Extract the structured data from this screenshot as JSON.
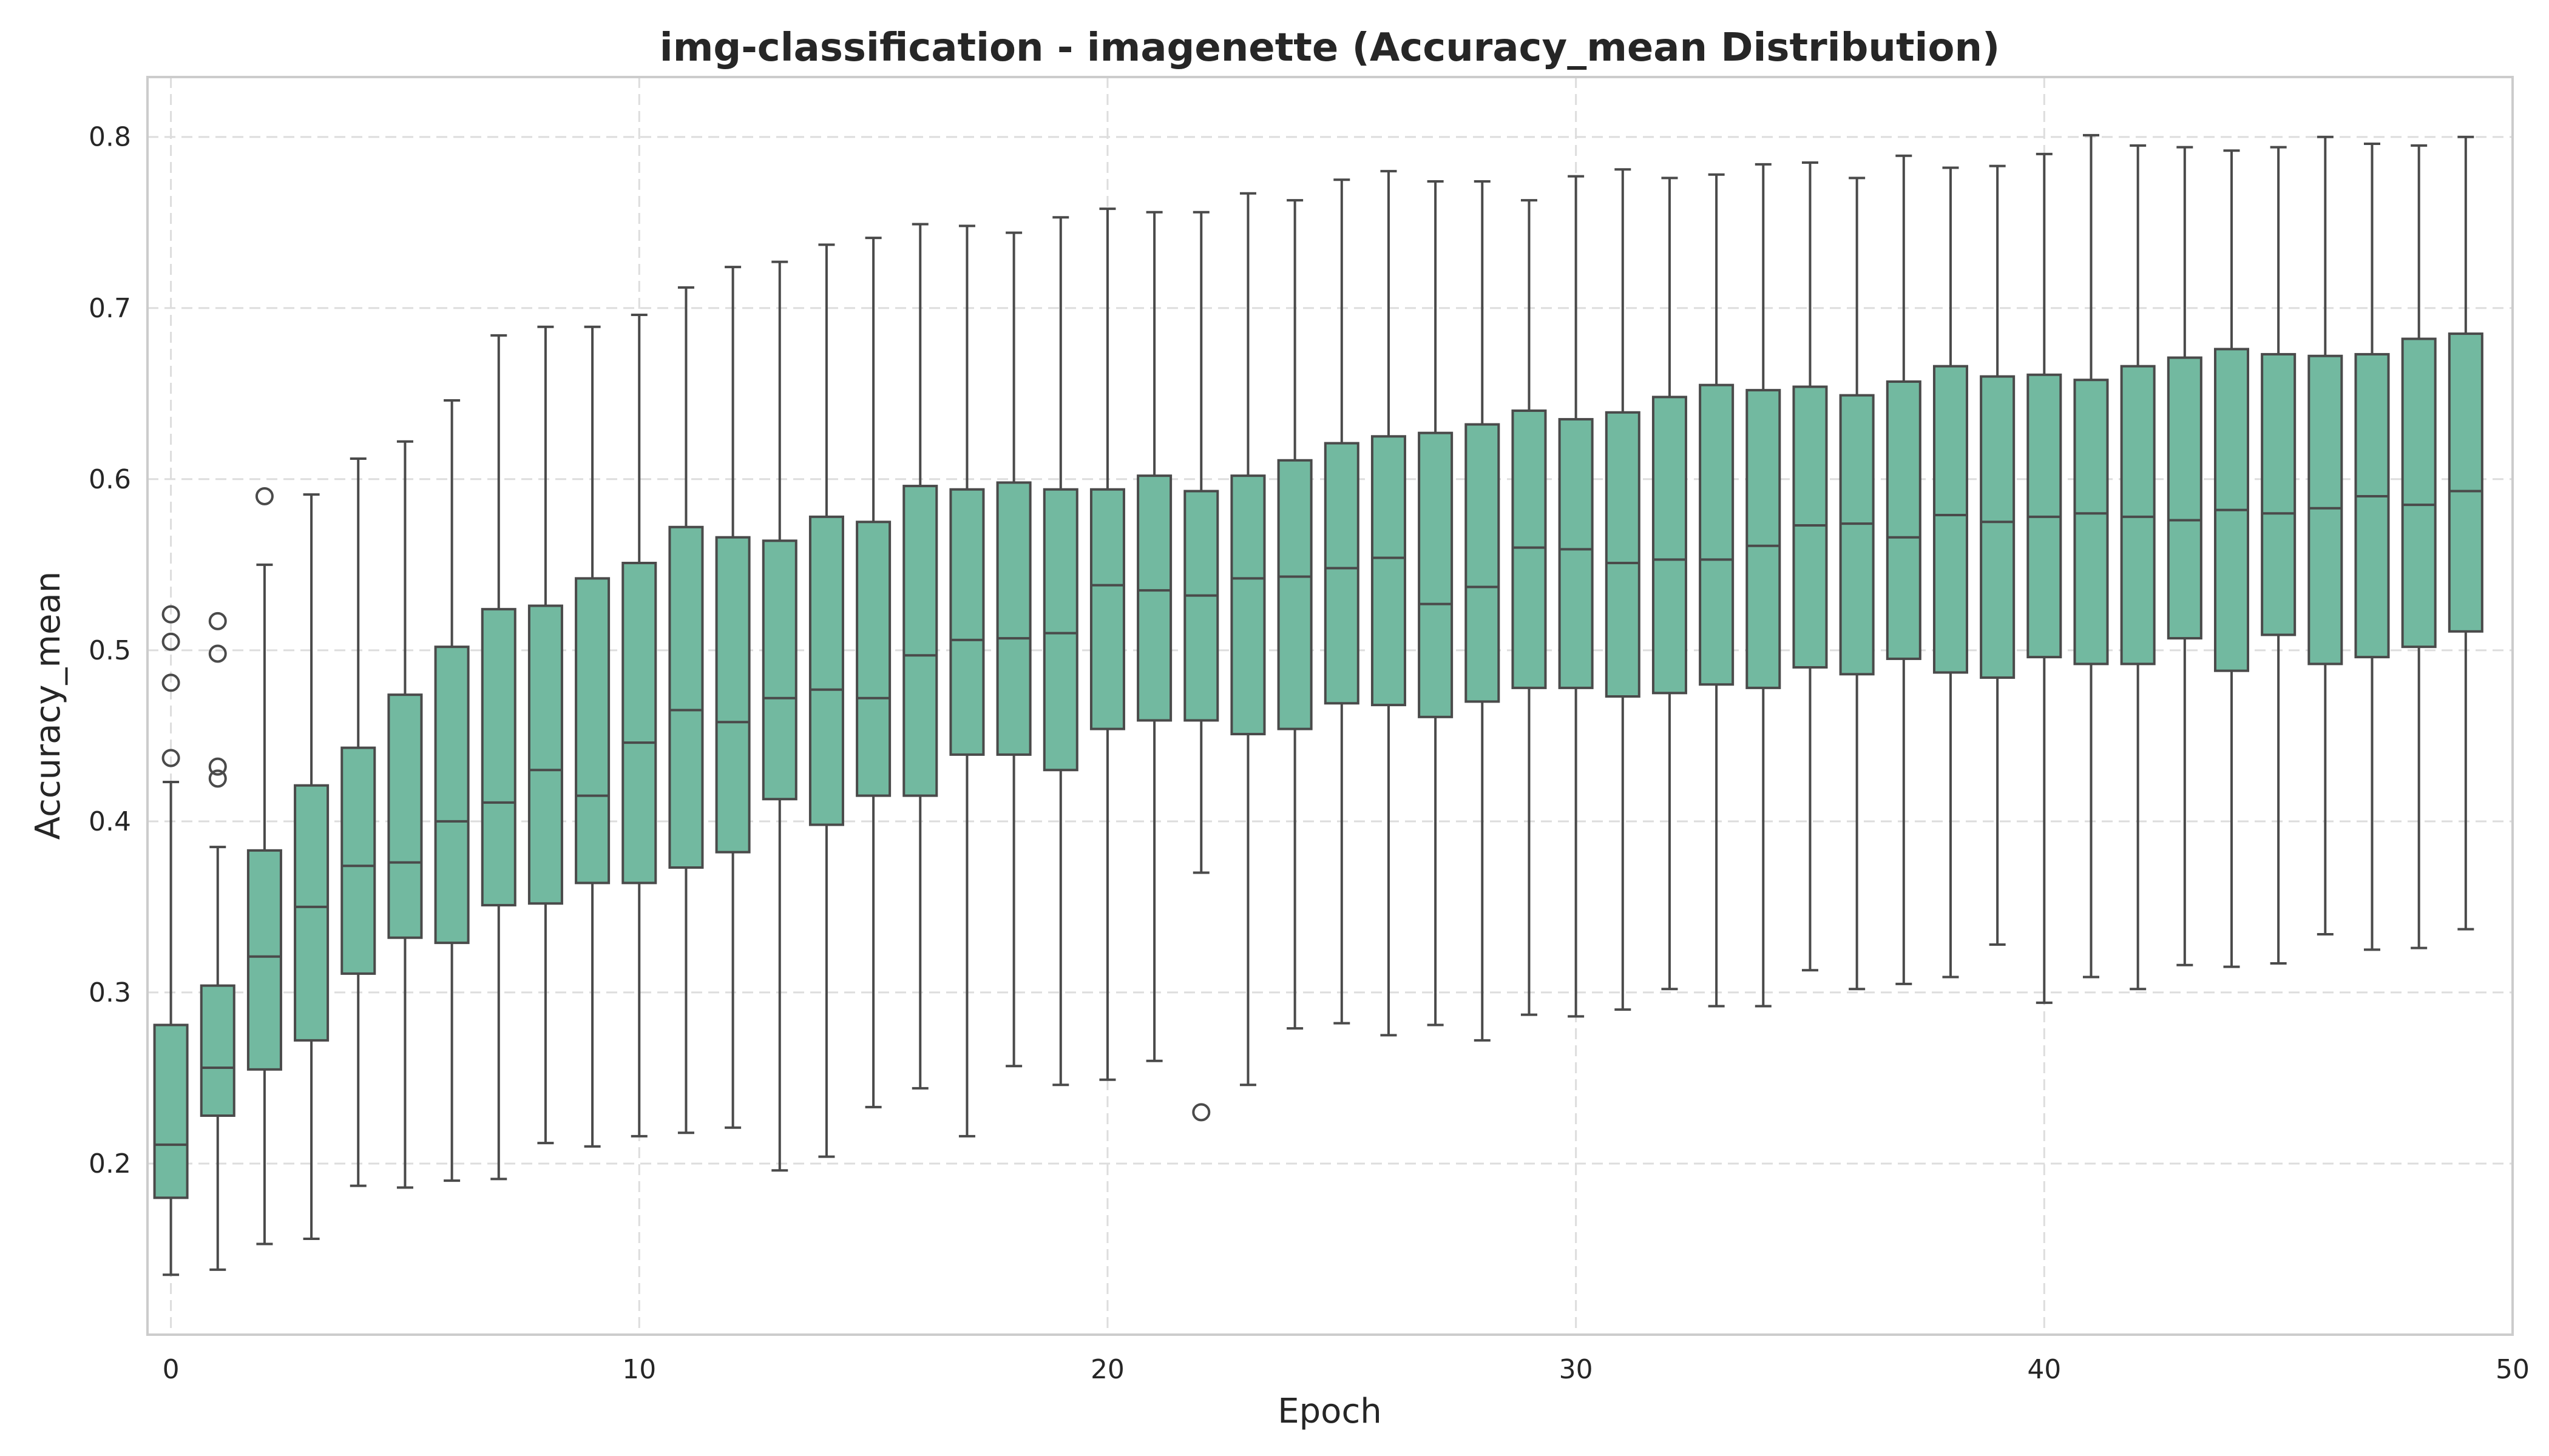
{
  "chart_data": {
    "type": "box",
    "title": "img-classification - imagenette (Accuracy_mean Distribution)",
    "xlabel": "Epoch",
    "ylabel": "Accuracy_mean",
    "xlim": [
      -0.5,
      50
    ],
    "ylim": [
      0.1,
      0.835
    ],
    "x_ticks": [
      0,
      10,
      20,
      30,
      40,
      50
    ],
    "y_ticks": [
      0.2,
      0.3,
      0.4,
      0.5,
      0.6,
      0.7,
      0.8
    ],
    "grid": true,
    "box_color": "#72b9a0",
    "line_color": "#4a4a4a",
    "boxes": [
      {
        "epoch": 0,
        "whisker_low": 0.135,
        "q1": 0.18,
        "median": 0.211,
        "q3": 0.281,
        "whisker_high": 0.423,
        "outliers": [
          0.437,
          0.481,
          0.505,
          0.521
        ]
      },
      {
        "epoch": 1,
        "whisker_low": 0.138,
        "q1": 0.228,
        "median": 0.256,
        "q3": 0.304,
        "whisker_high": 0.385,
        "outliers": [
          0.425,
          0.432,
          0.498,
          0.517
        ]
      },
      {
        "epoch": 2,
        "whisker_low": 0.153,
        "q1": 0.255,
        "median": 0.321,
        "q3": 0.383,
        "whisker_high": 0.55,
        "outliers": [
          0.59
        ]
      },
      {
        "epoch": 3,
        "whisker_low": 0.156,
        "q1": 0.272,
        "median": 0.35,
        "q3": 0.421,
        "whisker_high": 0.591,
        "outliers": []
      },
      {
        "epoch": 4,
        "whisker_low": 0.187,
        "q1": 0.311,
        "median": 0.374,
        "q3": 0.443,
        "whisker_high": 0.612,
        "outliers": []
      },
      {
        "epoch": 5,
        "whisker_low": 0.186,
        "q1": 0.332,
        "median": 0.376,
        "q3": 0.474,
        "whisker_high": 0.622,
        "outliers": []
      },
      {
        "epoch": 6,
        "whisker_low": 0.19,
        "q1": 0.329,
        "median": 0.4,
        "q3": 0.502,
        "whisker_high": 0.646,
        "outliers": []
      },
      {
        "epoch": 7,
        "whisker_low": 0.191,
        "q1": 0.351,
        "median": 0.411,
        "q3": 0.524,
        "whisker_high": 0.684,
        "outliers": []
      },
      {
        "epoch": 8,
        "whisker_low": 0.212,
        "q1": 0.352,
        "median": 0.43,
        "q3": 0.526,
        "whisker_high": 0.689,
        "outliers": []
      },
      {
        "epoch": 9,
        "whisker_low": 0.21,
        "q1": 0.364,
        "median": 0.415,
        "q3": 0.542,
        "whisker_high": 0.689,
        "outliers": []
      },
      {
        "epoch": 10,
        "whisker_low": 0.216,
        "q1": 0.364,
        "median": 0.446,
        "q3": 0.551,
        "whisker_high": 0.696,
        "outliers": []
      },
      {
        "epoch": 11,
        "whisker_low": 0.218,
        "q1": 0.373,
        "median": 0.465,
        "q3": 0.572,
        "whisker_high": 0.712,
        "outliers": []
      },
      {
        "epoch": 12,
        "whisker_low": 0.221,
        "q1": 0.382,
        "median": 0.458,
        "q3": 0.566,
        "whisker_high": 0.724,
        "outliers": []
      },
      {
        "epoch": 13,
        "whisker_low": 0.196,
        "q1": 0.413,
        "median": 0.472,
        "q3": 0.564,
        "whisker_high": 0.727,
        "outliers": []
      },
      {
        "epoch": 14,
        "whisker_low": 0.204,
        "q1": 0.398,
        "median": 0.477,
        "q3": 0.578,
        "whisker_high": 0.737,
        "outliers": []
      },
      {
        "epoch": 15,
        "whisker_low": 0.233,
        "q1": 0.415,
        "median": 0.472,
        "q3": 0.575,
        "whisker_high": 0.741,
        "outliers": []
      },
      {
        "epoch": 16,
        "whisker_low": 0.244,
        "q1": 0.415,
        "median": 0.497,
        "q3": 0.596,
        "whisker_high": 0.749,
        "outliers": []
      },
      {
        "epoch": 17,
        "whisker_low": 0.216,
        "q1": 0.439,
        "median": 0.506,
        "q3": 0.594,
        "whisker_high": 0.748,
        "outliers": []
      },
      {
        "epoch": 18,
        "whisker_low": 0.257,
        "q1": 0.439,
        "median": 0.507,
        "q3": 0.598,
        "whisker_high": 0.744,
        "outliers": []
      },
      {
        "epoch": 19,
        "whisker_low": 0.246,
        "q1": 0.43,
        "median": 0.51,
        "q3": 0.594,
        "whisker_high": 0.753,
        "outliers": []
      },
      {
        "epoch": 20,
        "whisker_low": 0.249,
        "q1": 0.454,
        "median": 0.538,
        "q3": 0.594,
        "whisker_high": 0.758,
        "outliers": []
      },
      {
        "epoch": 21,
        "whisker_low": 0.26,
        "q1": 0.459,
        "median": 0.535,
        "q3": 0.602,
        "whisker_high": 0.756,
        "outliers": []
      },
      {
        "epoch": 22,
        "whisker_low": 0.37,
        "q1": 0.459,
        "median": 0.532,
        "q3": 0.593,
        "whisker_high": 0.756,
        "outliers": [
          0.23
        ]
      },
      {
        "epoch": 23,
        "whisker_low": 0.246,
        "q1": 0.451,
        "median": 0.542,
        "q3": 0.602,
        "whisker_high": 0.767,
        "outliers": []
      },
      {
        "epoch": 24,
        "whisker_low": 0.279,
        "q1": 0.454,
        "median": 0.543,
        "q3": 0.611,
        "whisker_high": 0.763,
        "outliers": []
      },
      {
        "epoch": 25,
        "whisker_low": 0.282,
        "q1": 0.469,
        "median": 0.548,
        "q3": 0.621,
        "whisker_high": 0.775,
        "outliers": []
      },
      {
        "epoch": 26,
        "whisker_low": 0.275,
        "q1": 0.468,
        "median": 0.554,
        "q3": 0.625,
        "whisker_high": 0.78,
        "outliers": []
      },
      {
        "epoch": 27,
        "whisker_low": 0.281,
        "q1": 0.461,
        "median": 0.527,
        "q3": 0.627,
        "whisker_high": 0.774,
        "outliers": []
      },
      {
        "epoch": 28,
        "whisker_low": 0.272,
        "q1": 0.47,
        "median": 0.537,
        "q3": 0.632,
        "whisker_high": 0.774,
        "outliers": []
      },
      {
        "epoch": 29,
        "whisker_low": 0.287,
        "q1": 0.478,
        "median": 0.56,
        "q3": 0.64,
        "whisker_high": 0.763,
        "outliers": []
      },
      {
        "epoch": 30,
        "whisker_low": 0.286,
        "q1": 0.478,
        "median": 0.559,
        "q3": 0.635,
        "whisker_high": 0.777,
        "outliers": []
      },
      {
        "epoch": 31,
        "whisker_low": 0.29,
        "q1": 0.473,
        "median": 0.551,
        "q3": 0.639,
        "whisker_high": 0.781,
        "outliers": []
      },
      {
        "epoch": 32,
        "whisker_low": 0.302,
        "q1": 0.475,
        "median": 0.553,
        "q3": 0.648,
        "whisker_high": 0.776,
        "outliers": []
      },
      {
        "epoch": 33,
        "whisker_low": 0.292,
        "q1": 0.48,
        "median": 0.553,
        "q3": 0.655,
        "whisker_high": 0.778,
        "outliers": []
      },
      {
        "epoch": 34,
        "whisker_low": 0.292,
        "q1": 0.478,
        "median": 0.561,
        "q3": 0.652,
        "whisker_high": 0.784,
        "outliers": []
      },
      {
        "epoch": 35,
        "whisker_low": 0.313,
        "q1": 0.49,
        "median": 0.573,
        "q3": 0.654,
        "whisker_high": 0.785,
        "outliers": []
      },
      {
        "epoch": 36,
        "whisker_low": 0.302,
        "q1": 0.486,
        "median": 0.574,
        "q3": 0.649,
        "whisker_high": 0.776,
        "outliers": []
      },
      {
        "epoch": 37,
        "whisker_low": 0.305,
        "q1": 0.495,
        "median": 0.566,
        "q3": 0.657,
        "whisker_high": 0.789,
        "outliers": []
      },
      {
        "epoch": 38,
        "whisker_low": 0.309,
        "q1": 0.487,
        "median": 0.579,
        "q3": 0.666,
        "whisker_high": 0.782,
        "outliers": []
      },
      {
        "epoch": 39,
        "whisker_low": 0.328,
        "q1": 0.484,
        "median": 0.575,
        "q3": 0.66,
        "whisker_high": 0.783,
        "outliers": []
      },
      {
        "epoch": 40,
        "whisker_low": 0.294,
        "q1": 0.496,
        "median": 0.578,
        "q3": 0.661,
        "whisker_high": 0.79,
        "outliers": []
      },
      {
        "epoch": 41,
        "whisker_low": 0.309,
        "q1": 0.492,
        "median": 0.58,
        "q3": 0.658,
        "whisker_high": 0.801,
        "outliers": []
      },
      {
        "epoch": 42,
        "whisker_low": 0.302,
        "q1": 0.492,
        "median": 0.578,
        "q3": 0.666,
        "whisker_high": 0.795,
        "outliers": []
      },
      {
        "epoch": 43,
        "whisker_low": 0.316,
        "q1": 0.507,
        "median": 0.576,
        "q3": 0.671,
        "whisker_high": 0.794,
        "outliers": []
      },
      {
        "epoch": 44,
        "whisker_low": 0.315,
        "q1": 0.488,
        "median": 0.582,
        "q3": 0.676,
        "whisker_high": 0.792,
        "outliers": []
      },
      {
        "epoch": 45,
        "whisker_low": 0.317,
        "q1": 0.509,
        "median": 0.58,
        "q3": 0.673,
        "whisker_high": 0.794,
        "outliers": []
      },
      {
        "epoch": 46,
        "whisker_low": 0.334,
        "q1": 0.492,
        "median": 0.583,
        "q3": 0.672,
        "whisker_high": 0.8,
        "outliers": []
      },
      {
        "epoch": 47,
        "whisker_low": 0.325,
        "q1": 0.496,
        "median": 0.59,
        "q3": 0.673,
        "whisker_high": 0.796,
        "outliers": []
      },
      {
        "epoch": 48,
        "whisker_low": 0.326,
        "q1": 0.502,
        "median": 0.585,
        "q3": 0.682,
        "whisker_high": 0.795,
        "outliers": []
      },
      {
        "epoch": 49,
        "whisker_low": 0.337,
        "q1": 0.511,
        "median": 0.593,
        "q3": 0.685,
        "whisker_high": 0.8,
        "outliers": []
      }
    ]
  }
}
